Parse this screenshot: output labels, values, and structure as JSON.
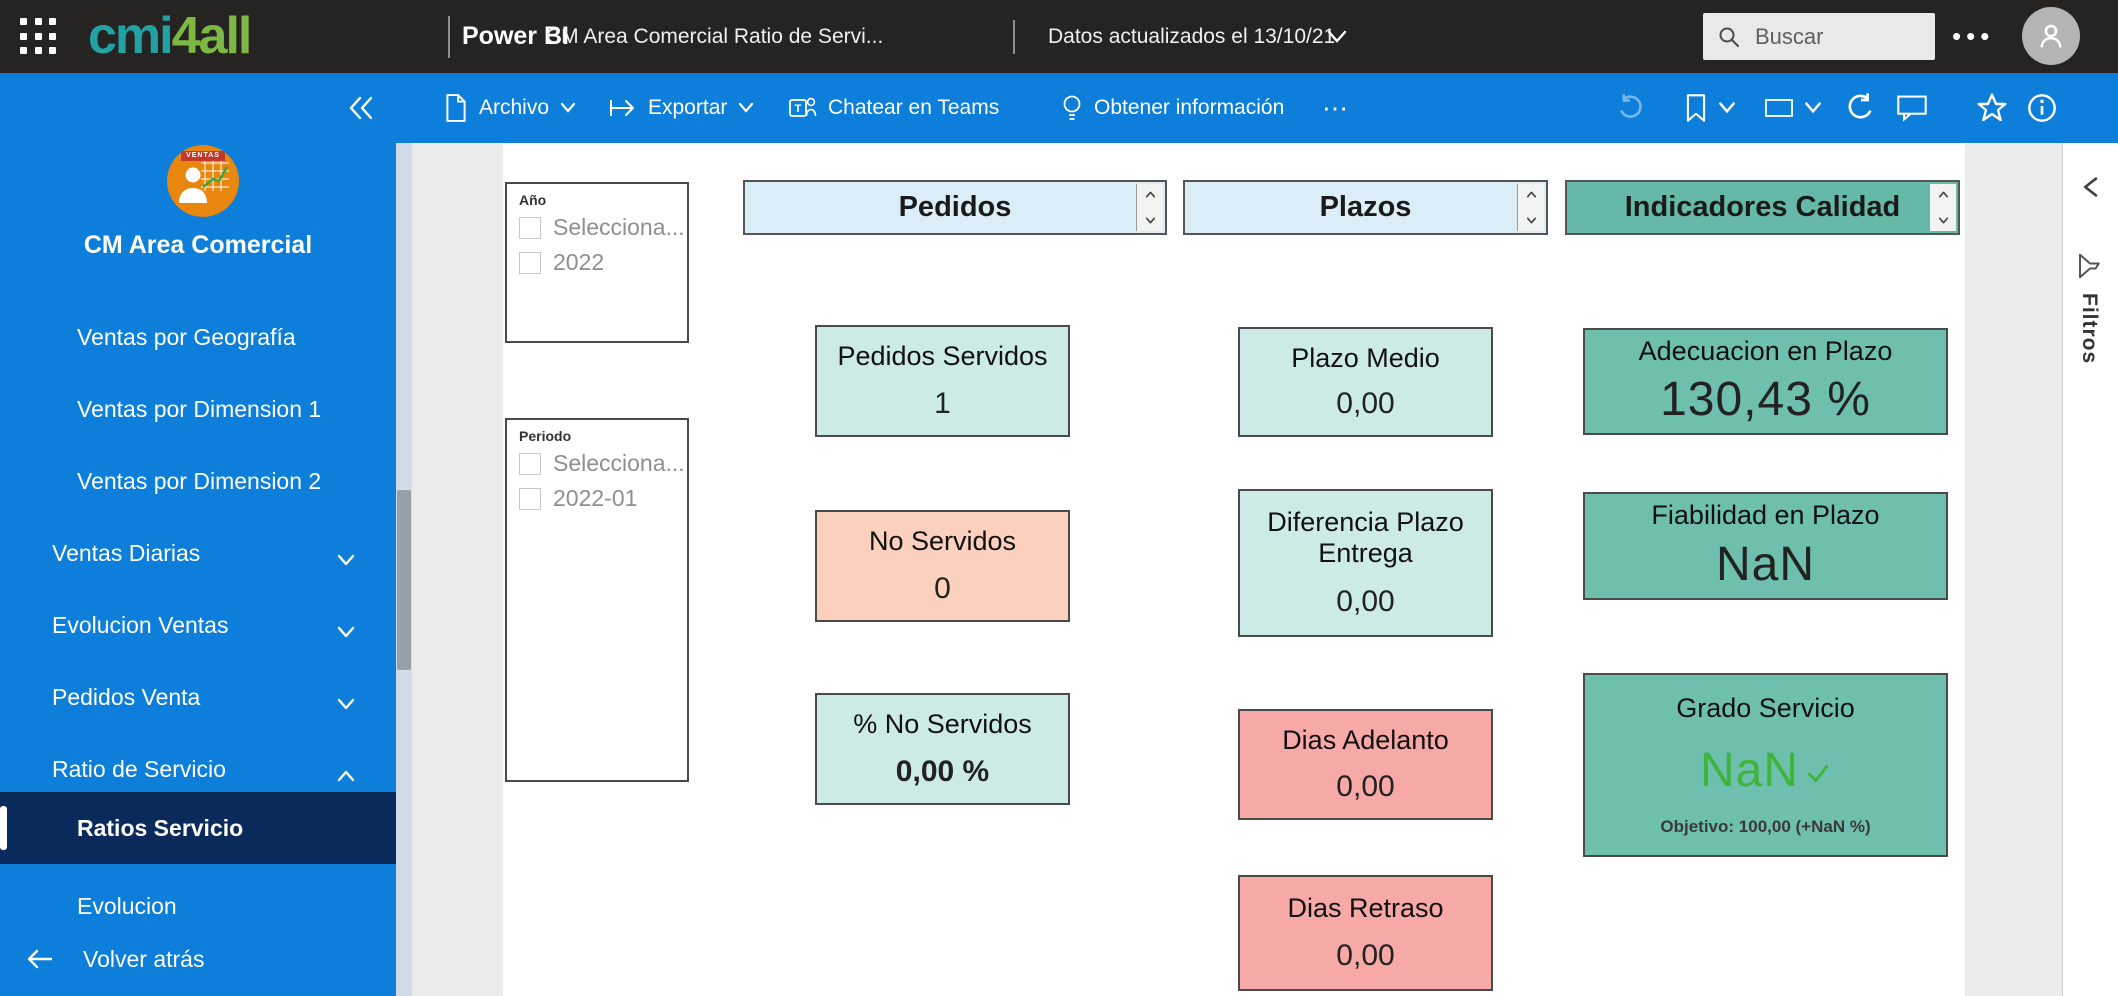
{
  "topbar": {
    "logo_part1": "cmi",
    "logo_part2": "4all",
    "app_name": "Power BI",
    "report_title": "CM Area Comercial Ratio de Servi...",
    "updated_text": "Datos actualizados el 13/10/21",
    "search_placeholder": "Buscar"
  },
  "toolbar": {
    "archivo": "Archivo",
    "exportar": "Exportar",
    "chatear": "Chatear en Teams",
    "obtener": "Obtener información"
  },
  "sidebar": {
    "logo_banner": "VENTAS",
    "title": "CM Area Comercial",
    "items": [
      {
        "label": "Ventas por Geografía",
        "indent": true
      },
      {
        "label": "Ventas por Dimension 1",
        "indent": true
      },
      {
        "label": "Ventas por Dimension 2",
        "indent": true
      },
      {
        "label": "Ventas Diarias",
        "chevron": "down"
      },
      {
        "label": "Evolucion Ventas",
        "chevron": "down"
      },
      {
        "label": "Pedidos Venta",
        "chevron": "down"
      },
      {
        "label": "Ratio de Servicio",
        "chevron": "up"
      },
      {
        "label": "Ratios Servicio",
        "child": true,
        "selected": true
      },
      {
        "label": "Evolucion",
        "child": true
      }
    ],
    "back_label": "Volver atrás"
  },
  "slicers": [
    {
      "label": "Año",
      "options": [
        "Selecciona...",
        "2022"
      ]
    },
    {
      "label": "Periodo",
      "options": [
        "Selecciona...",
        "2022-01"
      ]
    }
  ],
  "kpi_columns": [
    {
      "header": "Pedidos",
      "header_bg": "#dbeef8",
      "cards": [
        {
          "title": "Pedidos Servidos",
          "value": "1",
          "bg": "#cdebe6"
        },
        {
          "title": "No Servidos",
          "value": "0",
          "bg": "#fbd1be"
        },
        {
          "title": "% No Servidos",
          "value": "0,00 %",
          "bg": "#cdebe6",
          "value_bold": true
        }
      ]
    },
    {
      "header": "Plazos",
      "header_bg": "#dbeef8",
      "cards": [
        {
          "title": "Plazo Medio",
          "value": "0,00",
          "bg": "#cdebe6"
        },
        {
          "title": "Diferencia Plazo Entrega",
          "value": "0,00",
          "bg": "#cdebe6"
        },
        {
          "title": "Dias Adelanto",
          "value": "0,00",
          "bg": "#f6a9a6"
        },
        {
          "title": "Dias Retraso",
          "value": "0,00",
          "bg": "#f6a9a6"
        }
      ]
    },
    {
      "header": "Indicadores Calidad",
      "header_bg": "#66b9a8",
      "cards": [
        {
          "title": "Adecuacion en Plazo",
          "value": "130,43 %",
          "bg": "#6fbfaf",
          "value_big": true
        },
        {
          "title": "Fiabilidad en Plazo",
          "value": "NaN",
          "bg": "#6fbfaf",
          "value_big": true
        },
        {
          "title": "Grado Servicio",
          "value": "NaN",
          "bg": "#6fbfaf",
          "value_big": true,
          "value_color": "#3cb53a",
          "check": true,
          "subtitle": "Objetivo: 100,00 (+NaN %)"
        }
      ]
    }
  ],
  "filters_panel": {
    "label": "Filtros"
  },
  "colors": {
    "topbar_bg": "#252423",
    "blue": "#0d7ed9",
    "selected_nav": "#0a2a5c",
    "logo_teal": "#22a2a2",
    "logo_green": "#7cb843",
    "logo_orange": "#e8860d",
    "header_blue": "#dbeef8",
    "header_teal": "#66b9a8",
    "card_mint": "#cdebe6",
    "card_peach": "#fbd1be",
    "card_pink": "#f6a9a6",
    "card_teal": "#6fbfaf",
    "value_green": "#3cb53a"
  }
}
